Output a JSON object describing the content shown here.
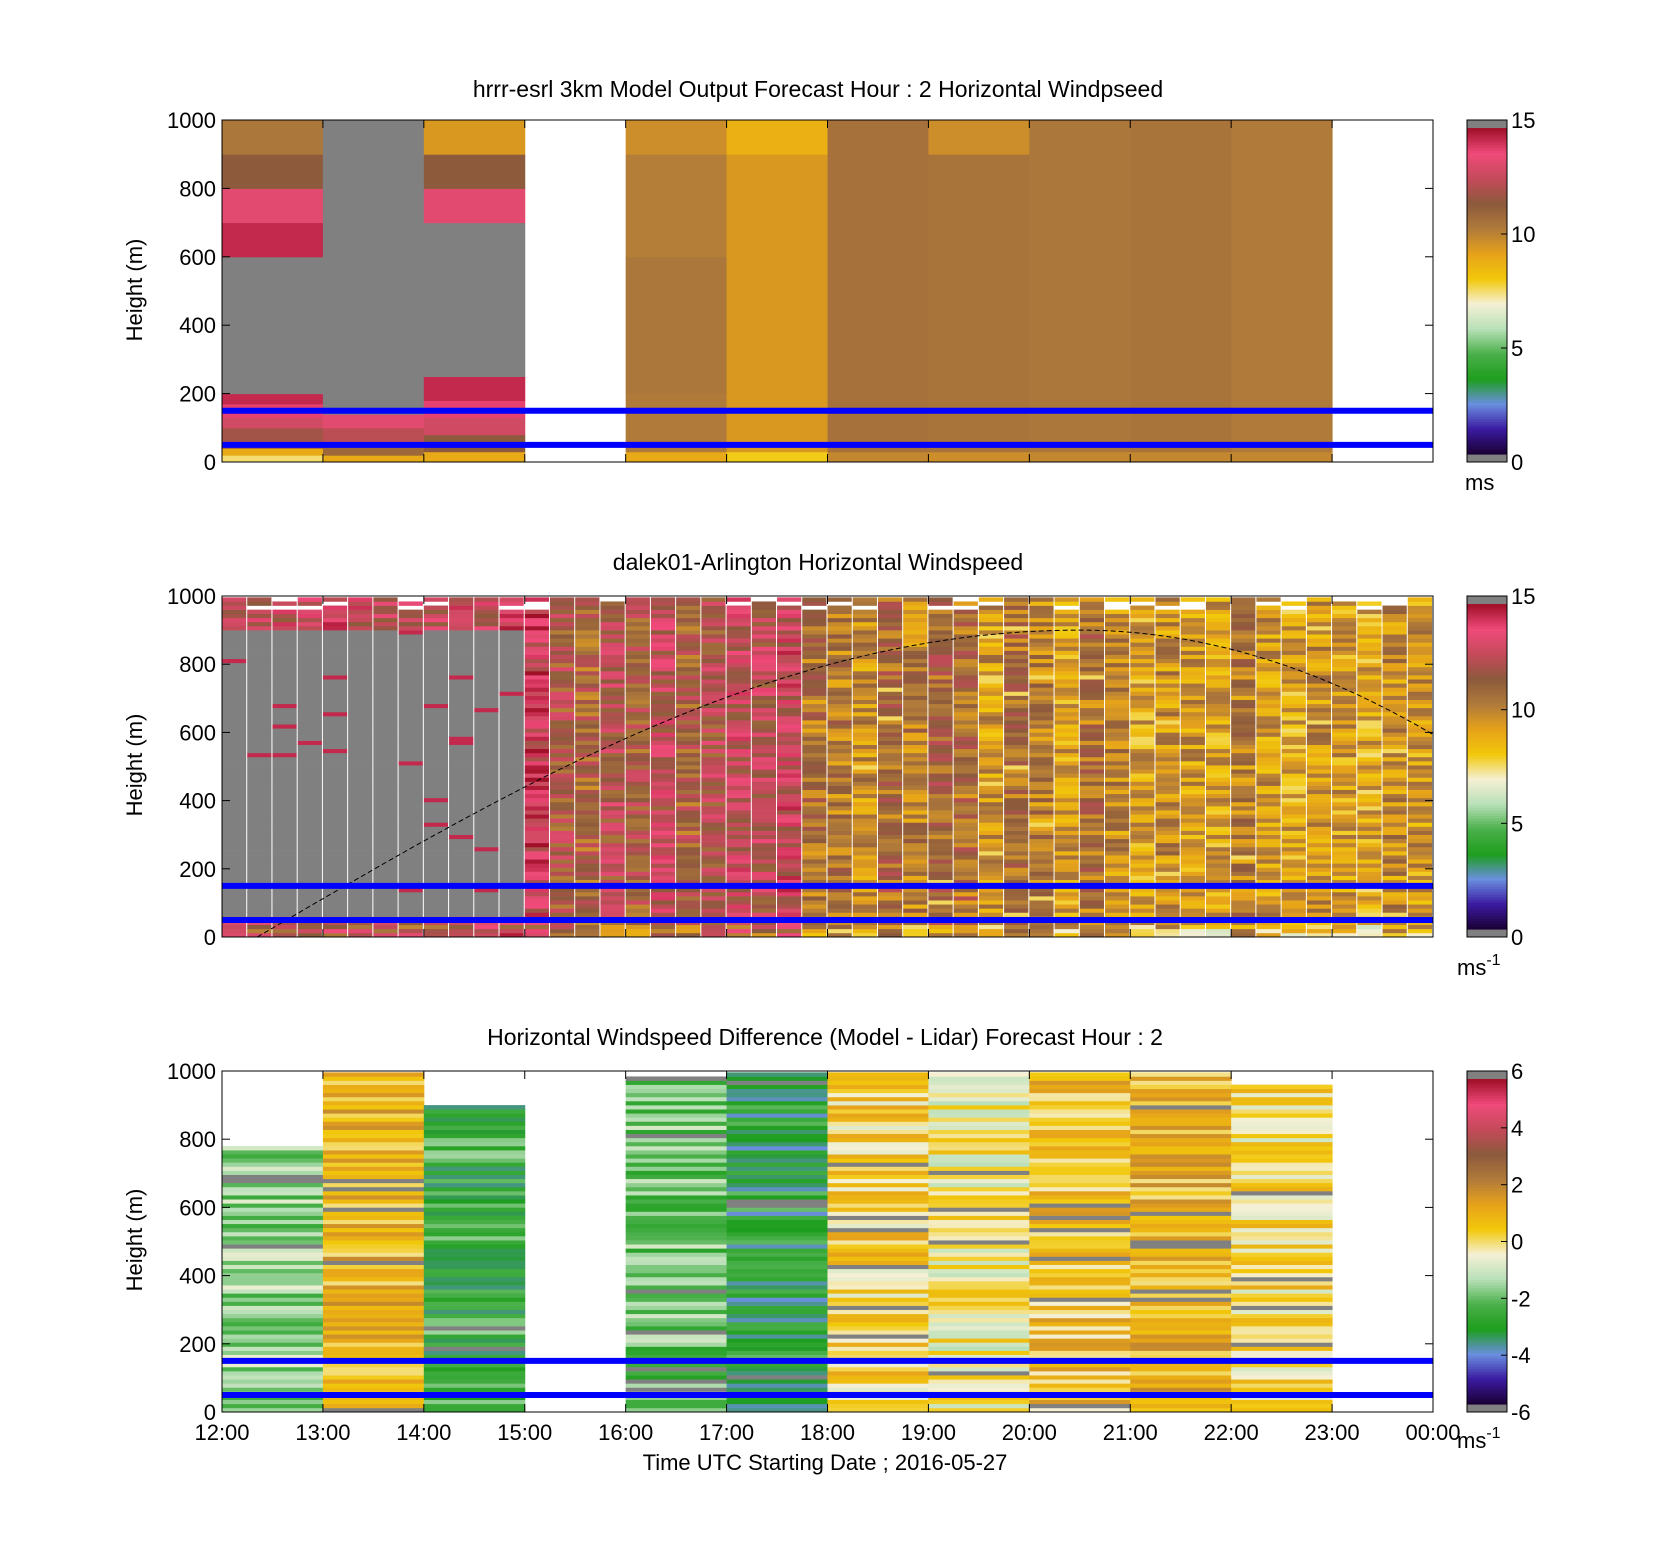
{
  "figure": {
    "xlabel": "Time UTC  Starting Date ; 2016-05-27",
    "xticks": [
      "12:00",
      "13:00",
      "14:00",
      "15:00",
      "16:00",
      "17:00",
      "18:00",
      "19:00",
      "20:00",
      "21:00",
      "22:00",
      "23:00",
      "00:00"
    ]
  },
  "chart_data": [
    {
      "type": "heatmap",
      "title": "hrrr-esrl 3km Model Output   Forecast Hour : 2 Horizontal Windpseed",
      "xlabel": "",
      "ylabel": "Height (m)",
      "ylim": [
        0,
        1000
      ],
      "yticks": [
        "0",
        "200",
        "400",
        "600",
        "800",
        "1000"
      ],
      "x_start": "12:00",
      "x_step_hours": 1,
      "colorbar": {
        "range": [
          0,
          15
        ],
        "ticks": [
          "0",
          "5",
          "10",
          "15"
        ],
        "unit": "ms",
        "unit_sup": "",
        "colormap": [
          "#1a0033",
          "#3a1aa0",
          "#6a8ee0",
          "#1e9e1e",
          "#4ab04a",
          "#b8e0b8",
          "#f5f0d5",
          "#f2c80a",
          "#e6a21a",
          "#b07a3a",
          "#8c5a3c",
          "#c44a5a",
          "#f04a7a",
          "#a01028"
        ],
        "under_color": "#808080"
      },
      "blue_lines_m": [
        150,
        50
      ],
      "columns": [
        {
          "hour": "12:00",
          "segments": [
            {
              "from": 0,
              "to": 20,
              "v": 7.5
            },
            {
              "from": 20,
              "to": 40,
              "v": 9
            },
            {
              "from": 40,
              "to": 60,
              "v": 11
            },
            {
              "from": 60,
              "to": 100,
              "v": 12
            },
            {
              "from": 100,
              "to": 130,
              "v": 13
            },
            {
              "from": 130,
              "to": 170,
              "v": 14
            },
            {
              "from": 170,
              "to": 200,
              "v": 14.5
            },
            {
              "from": 200,
              "to": 600,
              "v": -1
            },
            {
              "from": 600,
              "to": 700,
              "v": 14.5
            },
            {
              "from": 700,
              "to": 800,
              "v": 13.5
            },
            {
              "from": 800,
              "to": 900,
              "v": 11.5
            },
            {
              "from": 900,
              "to": 1000,
              "v": 10.5
            }
          ]
        },
        {
          "hour": "13:00",
          "segments": [
            {
              "from": 0,
              "to": 20,
              "v": 9
            },
            {
              "from": 20,
              "to": 60,
              "v": 11
            },
            {
              "from": 60,
              "to": 100,
              "v": 12.5
            },
            {
              "from": 100,
              "to": 140,
              "v": 13.5
            },
            {
              "from": 140,
              "to": 1000,
              "v": -1
            }
          ]
        },
        {
          "hour": "14:00",
          "segments": [
            {
              "from": 0,
              "to": 30,
              "v": 9
            },
            {
              "from": 30,
              "to": 80,
              "v": 11.5
            },
            {
              "from": 80,
              "to": 130,
              "v": 13
            },
            {
              "from": 130,
              "to": 180,
              "v": 14
            },
            {
              "from": 180,
              "to": 250,
              "v": 14.5
            },
            {
              "from": 250,
              "to": 700,
              "v": -1
            },
            {
              "from": 700,
              "to": 800,
              "v": 13.5
            },
            {
              "from": 800,
              "to": 900,
              "v": 11.5
            },
            {
              "from": 900,
              "to": 1000,
              "v": 9.5
            }
          ]
        },
        {
          "hour": "15:00",
          "segments": []
        },
        {
          "hour": "16:00",
          "segments": [
            {
              "from": 0,
              "to": 30,
              "v": 9
            },
            {
              "from": 30,
              "to": 200,
              "v": 10.4
            },
            {
              "from": 200,
              "to": 600,
              "v": 10.5
            },
            {
              "from": 600,
              "to": 900,
              "v": 10.3
            },
            {
              "from": 900,
              "to": 1000,
              "v": 9.8
            }
          ]
        },
        {
          "hour": "17:00",
          "segments": [
            {
              "from": 0,
              "to": 30,
              "v": 8
            },
            {
              "from": 30,
              "to": 900,
              "v": 9.5
            },
            {
              "from": 900,
              "to": 1000,
              "v": 8.8
            }
          ]
        },
        {
          "hour": "18:00",
          "segments": [
            {
              "from": 0,
              "to": 30,
              "v": 10
            },
            {
              "from": 30,
              "to": 1000,
              "v": 10.7
            }
          ]
        },
        {
          "hour": "19:00",
          "segments": [
            {
              "from": 0,
              "to": 30,
              "v": 9.8
            },
            {
              "from": 30,
              "to": 900,
              "v": 10.6
            },
            {
              "from": 900,
              "to": 1000,
              "v": 9.8
            }
          ]
        },
        {
          "hour": "20:00",
          "segments": [
            {
              "from": 0,
              "to": 30,
              "v": 10
            },
            {
              "from": 30,
              "to": 1000,
              "v": 10.5
            }
          ]
        },
        {
          "hour": "21:00",
          "segments": [
            {
              "from": 0,
              "to": 30,
              "v": 10
            },
            {
              "from": 30,
              "to": 1000,
              "v": 10.6
            }
          ]
        },
        {
          "hour": "22:00",
          "segments": [
            {
              "from": 0,
              "to": 30,
              "v": 10
            },
            {
              "from": 30,
              "to": 1000,
              "v": 10.4
            }
          ]
        },
        {
          "hour": "23:00",
          "segments": []
        }
      ]
    },
    {
      "type": "heatmap",
      "title": "dalek01-Arlington  Horizontal Windspeed",
      "xlabel": "",
      "ylabel": "Height (m)",
      "ylim": [
        0,
        1000
      ],
      "yticks": [
        "0",
        "200",
        "400",
        "600",
        "800",
        "1000"
      ],
      "x_start": "12:00",
      "x_step_hours": 0.25,
      "colorbar": {
        "range": [
          0,
          15
        ],
        "ticks": [
          "0",
          "5",
          "10",
          "15"
        ],
        "unit": "ms",
        "unit_sup": "-1",
        "colormap": [
          "#1a0033",
          "#3a1aa0",
          "#6a8ee0",
          "#1e9e1e",
          "#4ab04a",
          "#b8e0b8",
          "#f5f0d5",
          "#f2c80a",
          "#e6a21a",
          "#b07a3a",
          "#8c5a3c",
          "#c44a5a",
          "#f04a7a",
          "#a01028"
        ],
        "under_color": "#808080"
      },
      "blue_lines_m": [
        150,
        50
      ],
      "column_mean_speed": [
        13.0,
        12.6,
        12.8,
        13.2,
        13.4,
        13.0,
        12.5,
        12.8,
        12.6,
        12.9,
        13.1,
        13.8,
        13.5,
        11.8,
        11.2,
        12.2,
        11.5,
        12.6,
        11.4,
        12.0,
        12.8,
        12.4,
        13.1,
        10.6,
        10.4,
        9.8,
        11.0,
        10.2,
        11.2,
        10.8,
        9.6,
        10.9,
        10.1,
        9.4,
        10.7,
        9.9,
        9.2,
        9.8,
        9.5,
        9.3,
        10.2,
        9.6,
        9.1,
        9.7,
        9.4,
        9.0,
        9.8,
        9.5
      ],
      "gray_region": "12:00-15:00, 50-900 m",
      "dashed_curve_peak_m": 900
    },
    {
      "type": "heatmap",
      "title": "Horizontal Windspeed Difference (Model - Lidar) Forecast Hour : 2",
      "xlabel": "Time UTC  Starting Date ; 2016-05-27",
      "ylabel": "Height (m)",
      "ylim": [
        0,
        1000
      ],
      "yticks": [
        "0",
        "200",
        "400",
        "600",
        "800",
        "1000"
      ],
      "x_start": "12:00",
      "x_step_hours": 1,
      "colorbar": {
        "range": [
          -6,
          6
        ],
        "ticks": [
          "-6",
          "-4",
          "-2",
          "0",
          "2",
          "4",
          "6"
        ],
        "unit": "ms",
        "unit_sup": "-1",
        "colormap": [
          "#1a0033",
          "#3a1aa0",
          "#6a8ee0",
          "#1e9e1e",
          "#4ab04a",
          "#b8e0b8",
          "#f5f0d5",
          "#f2c80a",
          "#e6a21a",
          "#b07a3a",
          "#8c5a3c",
          "#c44a5a",
          "#f04a7a",
          "#a01028"
        ],
        "under_color": "#808080"
      },
      "blue_lines_m": [
        150,
        50
      ],
      "columns": [
        {
          "hour": "12:00",
          "top_m": 790,
          "mean_diff": -1.6
        },
        {
          "hour": "13:00",
          "top_m": 1000,
          "mean_diff": 0.9
        },
        {
          "hour": "14:00",
          "top_m": 900,
          "mean_diff": -2.6
        },
        {
          "hour": "15:00",
          "top_m": 0,
          "mean_diff": null
        },
        {
          "hour": "16:00",
          "top_m": 990,
          "mean_diff": -2.0
        },
        {
          "hour": "17:00",
          "top_m": 1000,
          "mean_diff": -3.1
        },
        {
          "hour": "18:00",
          "top_m": 1000,
          "mean_diff": 0.3
        },
        {
          "hour": "19:00",
          "top_m": 1000,
          "mean_diff": -0.3
        },
        {
          "hour": "20:00",
          "top_m": 1000,
          "mean_diff": 0.6
        },
        {
          "hour": "21:00",
          "top_m": 1000,
          "mean_diff": 0.9
        },
        {
          "hour": "22:00",
          "top_m": 960,
          "mean_diff": 0.1
        },
        {
          "hour": "23:00",
          "top_m": 0,
          "mean_diff": null
        }
      ]
    }
  ]
}
